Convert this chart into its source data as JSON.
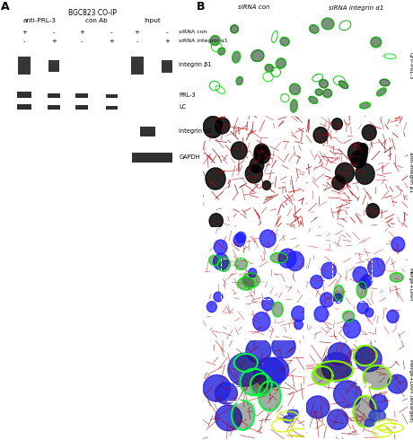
{
  "panel_A_title": "A",
  "panel_B_title": "B",
  "bg_color": "#ffffff",
  "header_text": "BGC823 CO-IP",
  "col_headers": [
    "anti-PRL-3",
    "con Ab",
    "Input"
  ],
  "siRNA_con": "siRNA con",
  "siRNA_integrin": "siRNA integrin α1",
  "blot_labels": [
    "integrin β1",
    "PRL-3",
    "LC",
    "integrin α1",
    "GAPDH"
  ],
  "col_B_headers": [
    "siRNA con",
    "siRNA integrin α1"
  ],
  "row_B_labels": [
    "GFP-PRL-3",
    "anti-integrin β1",
    "Merge+DAPI",
    "Merge+DAPI (enlarged)"
  ]
}
